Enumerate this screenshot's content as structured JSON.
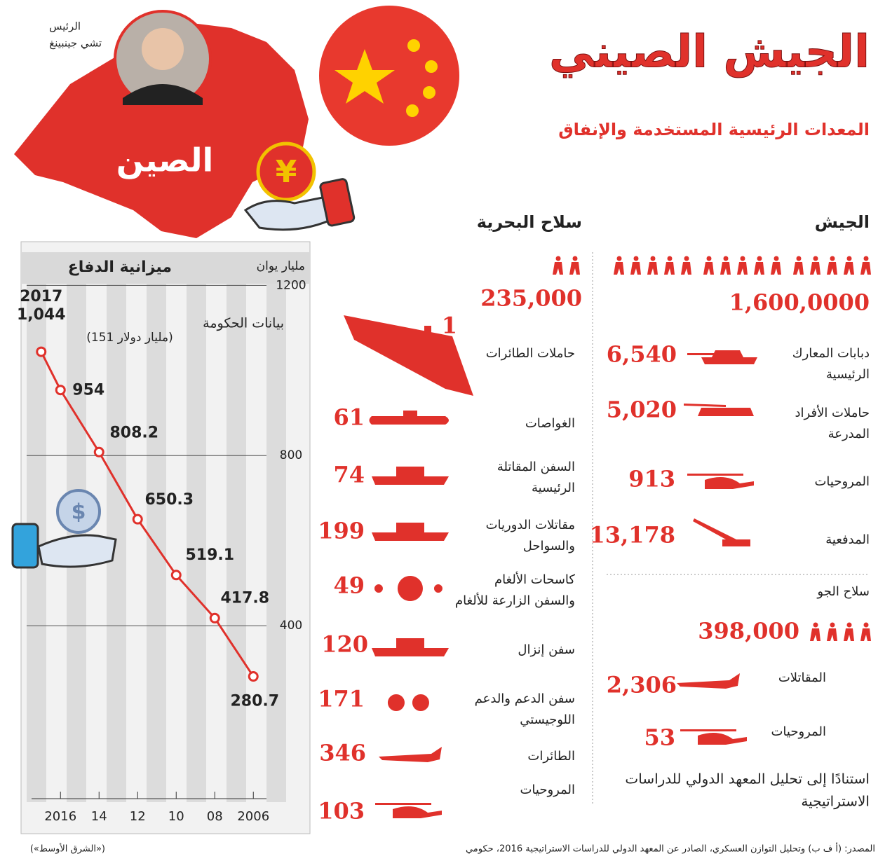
{
  "header": {
    "title": "الجيش الصيني",
    "subtitle": "المعدات الرئيسية المستخدمة والإنفاق",
    "country": "الصين",
    "president_title": "الرئيس",
    "president_name": "تشي جينبينغ"
  },
  "army": {
    "heading": "الجيش",
    "personnel": "1,600,0000",
    "items": [
      {
        "label": [
          "دبابات المعارك",
          "الرئيسية"
        ],
        "value": "6,540"
      },
      {
        "label": [
          "حاملات الأفراد",
          "المدرعة"
        ],
        "value": "5,020"
      },
      {
        "label": [
          "المروحيات"
        ],
        "value": "913"
      },
      {
        "label": [
          "المدفعية"
        ],
        "value": "13,178"
      }
    ]
  },
  "air_force": {
    "heading": "سلاح الجو",
    "personnel": "398,000",
    "items": [
      {
        "label": [
          "المقاتلات"
        ],
        "value": "2,306"
      },
      {
        "label": [
          "المروحيات"
        ],
        "value": "53"
      }
    ],
    "note": [
      "استنادًا إلى تحليل المعهد الدولي للدراسات",
      "الاستراتيجية"
    ]
  },
  "navy": {
    "heading": "سلاح البحرية",
    "personnel": "235,000",
    "items": [
      {
        "label": [
          "حاملات الطائرات"
        ],
        "value": "1"
      },
      {
        "label": [
          "الغواصات"
        ],
        "value": "61"
      },
      {
        "label": [
          "السفن المقاتلة",
          "الرئيسية"
        ],
        "value": "74"
      },
      {
        "label": [
          "مقاتلات الدوريات",
          "والسواحل"
        ],
        "value": "199"
      },
      {
        "label": [
          "كاسحات الألغام",
          "والسفن الزارعة للألغام"
        ],
        "value": "49"
      },
      {
        "label": [
          "سفن إنزال"
        ],
        "value": "120"
      },
      {
        "label": [
          "سفن الدعم والدعم",
          "اللوجيستي"
        ],
        "value": "171"
      },
      {
        "label": [
          "الطائرات"
        ],
        "value": "346"
      },
      {
        "label": [
          "المروحيات"
        ],
        "value": "103"
      }
    ]
  },
  "chart_data": {
    "type": "line",
    "title": "ميزانية الدفاع",
    "y_label": "مليار يوان",
    "annotation": "بيانات الحكومة",
    "usd_note": "(151 مليار دولار)",
    "x": [
      2006,
      2008,
      2010,
      2012,
      2014,
      2016,
      2017
    ],
    "values": [
      280.7,
      417.8,
      519.1,
      650.3,
      808.2,
      954,
      1044
    ],
    "value_labels": [
      "280.7",
      "417.8",
      "519.1",
      "650.3",
      "808.2",
      "954",
      "1,044"
    ],
    "color": "#e0312b",
    "xlim": [
      2017.5,
      2005.5
    ],
    "xticks": [
      {
        "value": 2016,
        "label": "2016"
      },
      {
        "value": 2014,
        "label": "14"
      },
      {
        "value": 2012,
        "label": "12"
      },
      {
        "value": 2010,
        "label": "10"
      },
      {
        "value": 2008,
        "label": "08"
      },
      {
        "value": 2006,
        "label": "2006"
      }
    ],
    "ylim": [
      0,
      1250
    ],
    "yticks": [
      400,
      800,
      1200
    ],
    "grid": true
  },
  "footer": {
    "source": "المصدر: (أ ف ب) وتحليل التوازن العسكري، الصادر عن المعهد الدولي للدراسات الاستراتيجية 2016، حكومي",
    "credit": "(«الشرق الأوسط»)"
  }
}
